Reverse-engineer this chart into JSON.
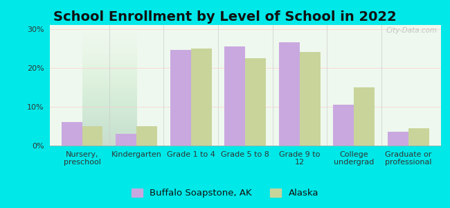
{
  "title": "School Enrollment by Level of School in 2022",
  "categories": [
    "Nursery,\npreschool",
    "Kindergarten",
    "Grade 1 to 4",
    "Grade 5 to 8",
    "Grade 9 to\n12",
    "College\nundergrad",
    "Graduate or\nprofessional"
  ],
  "buffalo": [
    6.0,
    3.0,
    24.5,
    25.5,
    26.5,
    10.5,
    3.5
  ],
  "alaska": [
    5.0,
    5.0,
    25.0,
    22.5,
    24.0,
    15.0,
    4.5
  ],
  "buffalo_color": "#c9a8e0",
  "alaska_color": "#c8d49a",
  "bg_outer": "#00e8e8",
  "bg_plot_color1": "#f2faf0",
  "bg_plot_color2": "#d8f0d8",
  "yticks": [
    0,
    10,
    20,
    30
  ],
  "ylim": [
    0,
    31
  ],
  "bar_width": 0.38,
  "legend_buffalo": "Buffalo Soapstone, AK",
  "legend_alaska": "Alaska",
  "watermark": "City-Data.com",
  "title_fontsize": 14,
  "tick_fontsize": 8,
  "legend_fontsize": 9.5
}
